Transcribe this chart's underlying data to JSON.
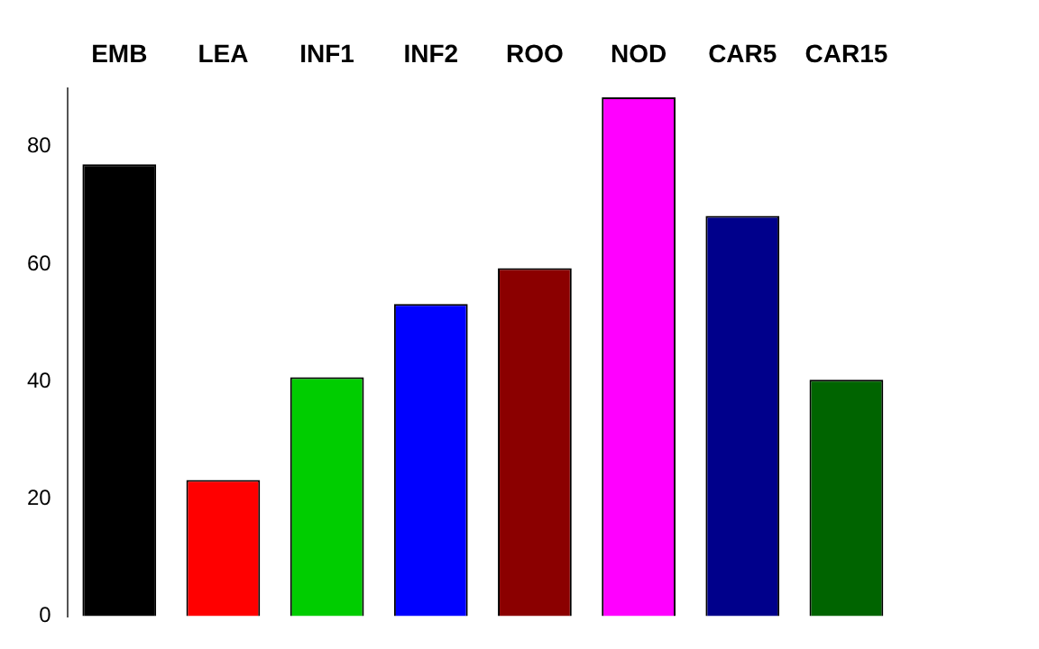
{
  "chart_data": {
    "type": "bar",
    "categories": [
      "EMB",
      "LEA",
      "INF1",
      "INF2",
      "ROO",
      "NOD",
      "CAR5",
      "CAR15"
    ],
    "values": [
      77,
      23.2,
      40.7,
      53.2,
      59.3,
      88.4,
      68.2,
      40.3
    ],
    "colors": [
      "#000000",
      "#ff0000",
      "#00cd00",
      "#0000ff",
      "#8b0000",
      "#ff00ff",
      "#00008b",
      "#006400"
    ],
    "ylim": [
      0,
      90
    ],
    "yticks": [
      0,
      20,
      40,
      60,
      80
    ],
    "grid": false,
    "legend": false
  }
}
